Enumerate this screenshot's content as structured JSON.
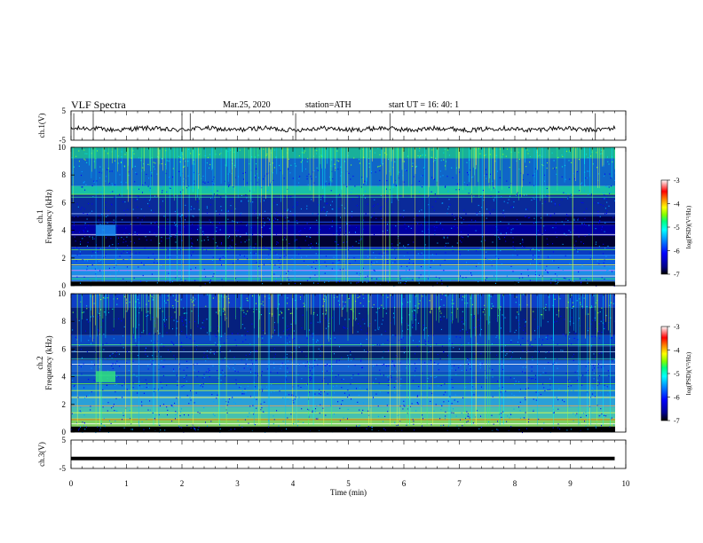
{
  "header": {
    "title": "VLF  Spectra",
    "date": "Mar.25, 2020",
    "station": "station=ATH",
    "start_ut": "start  UT  =    16: 40: 1"
  },
  "chart_data": [
    {
      "type": "line",
      "name": "ch1-waveform",
      "ylabel": "ch.1(V)",
      "yticks": [
        "5",
        "-5"
      ],
      "ylim": [
        -5,
        5
      ],
      "xlim": [
        0,
        10
      ],
      "baseline": -1.2,
      "spikes_min": [
        0.05,
        0.4,
        2.0,
        2.15,
        4.05,
        5.75,
        9.45
      ]
    },
    {
      "type": "heatmap",
      "name": "ch1-spectrogram",
      "ylabel": "ch.1\nFrequency (kHz)",
      "ylabel_line1": "ch.1",
      "ylabel_line2": "Frequency (kHz)",
      "yticks": [
        "0",
        "2",
        "4",
        "6",
        "8",
        "10"
      ],
      "ylim": [
        0,
        10
      ],
      "xlim": [
        0,
        9.8
      ],
      "colorbar": {
        "label": "log(PSD)(V²/Hz)",
        "ticks": [
          "-3",
          "-4",
          "-5",
          "-6",
          "-7"
        ],
        "range": [
          -7,
          -3
        ]
      }
    },
    {
      "type": "heatmap",
      "name": "ch2-spectrogram",
      "ylabel": "ch.2\nFrequency (kHz)",
      "ylabel_line1": "ch.2",
      "ylabel_line2": "Frequency (kHz)",
      "yticks": [
        "0",
        "2",
        "4",
        "6",
        "8",
        "10"
      ],
      "ylim": [
        0,
        10
      ],
      "xlim": [
        0,
        9.8
      ],
      "colorbar": {
        "label": "log(PSD)(V²/Hz)",
        "ticks": [
          "-3",
          "-4",
          "-5",
          "-6",
          "-7"
        ],
        "range": [
          -7,
          -3
        ]
      }
    },
    {
      "type": "line",
      "name": "ch3-waveform",
      "ylabel": "ch.3(V)",
      "yticks": [
        "5",
        "-5"
      ],
      "ylim": [
        -5,
        5
      ],
      "xlim": [
        0,
        9.8
      ],
      "baseline": -1.5
    }
  ],
  "xaxis": {
    "label": "Time  (min)",
    "ticks": [
      "0",
      "1",
      "2",
      "3",
      "4",
      "5",
      "6",
      "7",
      "8",
      "9",
      "10"
    ],
    "range": [
      0,
      10
    ]
  },
  "colors": {
    "colormap": [
      "#000000",
      "#00008b",
      "#0000ff",
      "#0080ff",
      "#00ffff",
      "#00ff80",
      "#80ff00",
      "#ffff00",
      "#ff8000",
      "#ff0000",
      "#ffffff"
    ]
  }
}
